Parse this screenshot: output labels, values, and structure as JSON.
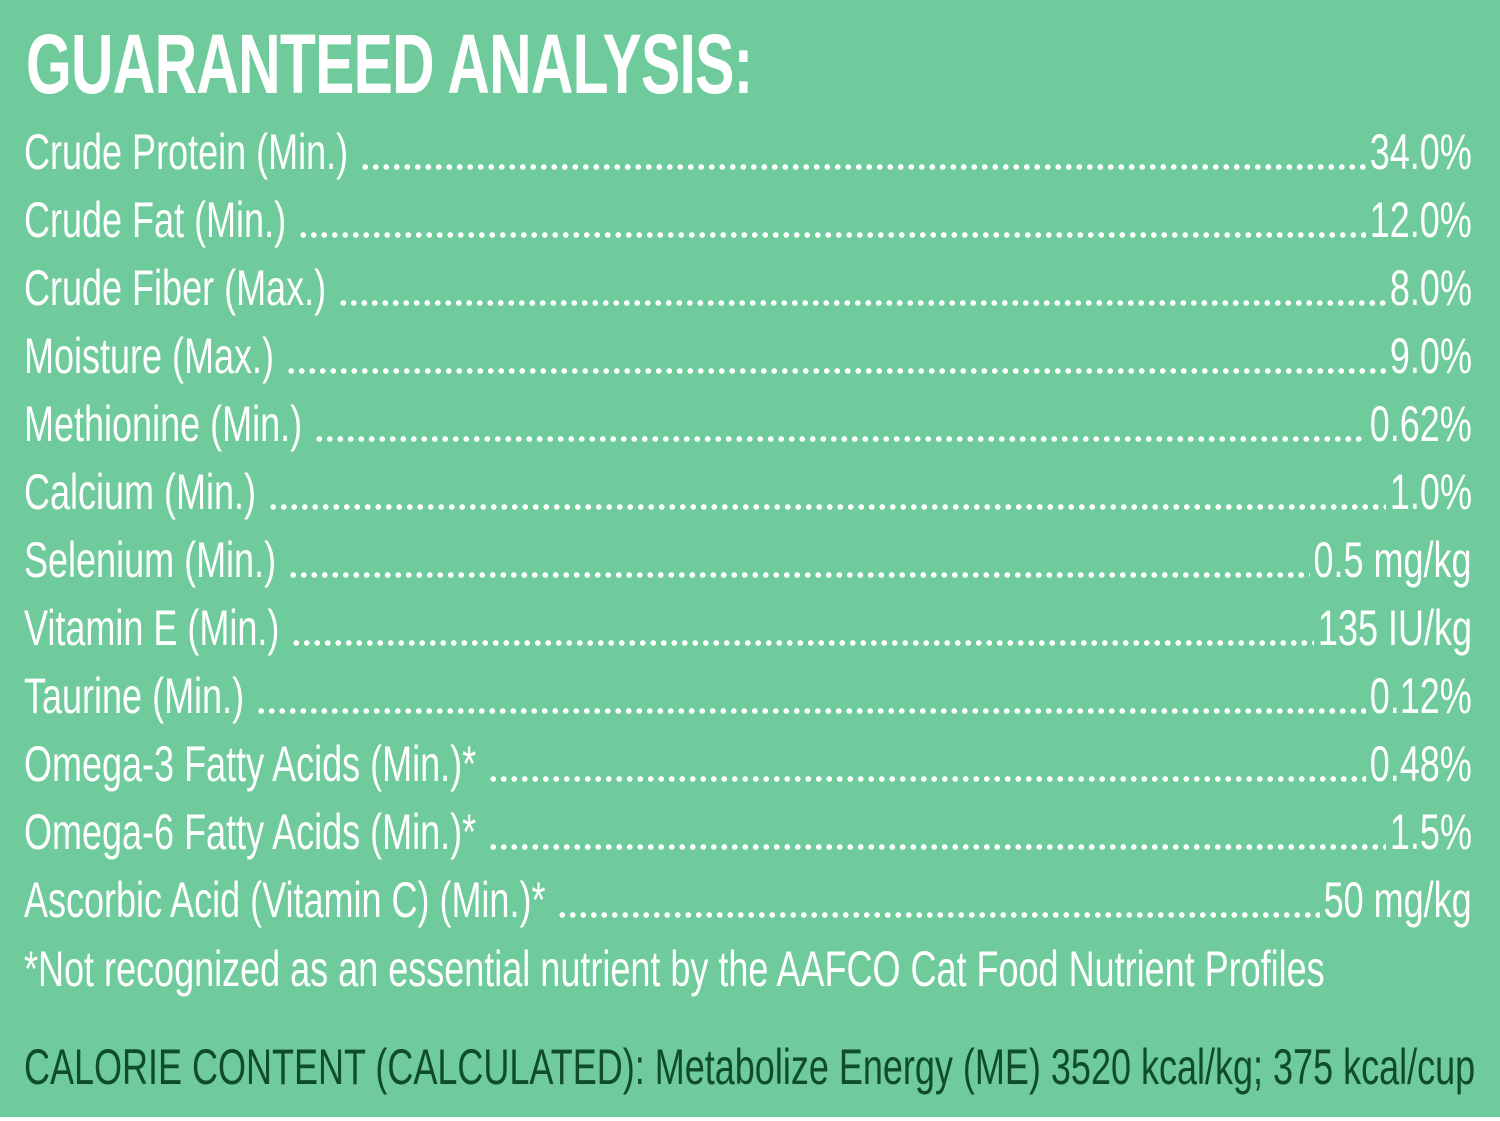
{
  "panel": {
    "background_color": "#6fcb9c",
    "text_color": "#ffffff",
    "calorie_text_color": "#0f4d27"
  },
  "title": "GUARANTEED ANALYSIS:",
  "analysis": {
    "rows": [
      {
        "label": "Crude Protein (Min.)",
        "value": "34.0%"
      },
      {
        "label": "Crude Fat (Min.)",
        "value": "12.0%"
      },
      {
        "label": "Crude Fiber (Max.)",
        "value": "8.0%"
      },
      {
        "label": "Moisture (Max.)",
        "value": "9.0%"
      },
      {
        "label": "Methionine (Min.)",
        "value": "0.62%"
      },
      {
        "label": "Calcium (Min.)",
        "value": "1.0%"
      },
      {
        "label": "Selenium (Min.)",
        "value": "0.5 mg/kg"
      },
      {
        "label": "Vitamin E (Min.)",
        "value": "135 IU/kg"
      },
      {
        "label": "Taurine (Min.)",
        "value": "0.12%"
      },
      {
        "label": "Omega-3 Fatty Acids (Min.)*",
        "value": "0.48%"
      },
      {
        "label": "Omega-6 Fatty Acids (Min.)*",
        "value": "1.5%"
      },
      {
        "label": "Ascorbic Acid (Vitamin C) (Min.)*",
        "value": "50 mg/kg"
      }
    ]
  },
  "footnote": "*Not recognized as an essential nutrient by the AAFCO Cat Food Nutrient Profiles",
  "calorie_content": "CALORIE CONTENT (CALCULATED): Metabolize Energy (ME) 3520 kcal/kg; 375 kcal/cup"
}
